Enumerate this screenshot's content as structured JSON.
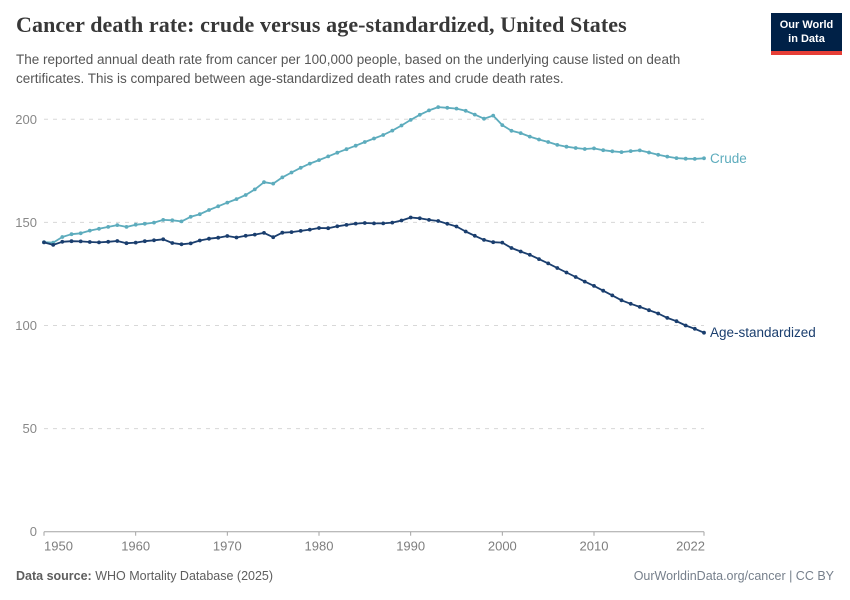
{
  "header": {
    "title": "Cancer death rate: crude versus age-standardized, United States",
    "subtitle": "The reported annual death rate from cancer per 100,000 people, based on the underlying cause listed on death certificates. This is compared between age-standardized death rates and crude death rates."
  },
  "logo": {
    "line1": "Our World",
    "line2": "in Data",
    "bg_color": "#002147",
    "accent_color": "#E63E36"
  },
  "chart_data": {
    "type": "line",
    "title": "Cancer death rate: crude versus age-standardized, United States",
    "xlabel": "",
    "ylabel": "",
    "xlim": [
      1950,
      2022
    ],
    "ylim": [
      0,
      210
    ],
    "x_ticks": [
      1950,
      1960,
      1970,
      1980,
      1990,
      2000,
      2010,
      2022
    ],
    "y_ticks": [
      0,
      50,
      100,
      150,
      200
    ],
    "grid": "horizontal-dashed",
    "legend_position": "end-of-line-labels",
    "marker": "dot",
    "x": [
      1950,
      1951,
      1952,
      1953,
      1954,
      1955,
      1956,
      1957,
      1958,
      1959,
      1960,
      1961,
      1962,
      1963,
      1964,
      1965,
      1966,
      1967,
      1968,
      1969,
      1970,
      1971,
      1972,
      1973,
      1974,
      1975,
      1976,
      1977,
      1978,
      1979,
      1980,
      1981,
      1982,
      1983,
      1984,
      1985,
      1986,
      1987,
      1988,
      1989,
      1990,
      1991,
      1992,
      1993,
      1994,
      1995,
      1996,
      1997,
      1998,
      1999,
      2000,
      2001,
      2002,
      2003,
      2004,
      2005,
      2006,
      2007,
      2008,
      2009,
      2010,
      2011,
      2012,
      2013,
      2014,
      2015,
      2016,
      2017,
      2018,
      2019,
      2020,
      2021,
      2022
    ],
    "series": [
      {
        "name": "Crude",
        "color": "#5DACBD",
        "values": [
          140.4,
          140.2,
          142.9,
          144.3,
          144.7,
          146.0,
          146.9,
          147.8,
          148.7,
          147.8,
          148.9,
          149.3,
          149.9,
          151.2,
          151.0,
          150.5,
          152.7,
          154.0,
          156.0,
          157.8,
          159.6,
          161.3,
          163.3,
          166.0,
          169.5,
          168.8,
          171.8,
          174.2,
          176.5,
          178.5,
          180.2,
          182.0,
          183.8,
          185.5,
          187.2,
          189.0,
          190.7,
          192.4,
          194.5,
          197.0,
          199.7,
          202.2,
          204.3,
          205.9,
          205.6,
          205.2,
          204.1,
          202.3,
          200.3,
          201.8,
          197.2,
          194.4,
          193.3,
          191.6,
          190.2,
          189.0,
          187.6,
          186.7,
          186.1,
          185.6,
          185.9,
          185.0,
          184.5,
          184.1,
          184.6,
          184.9,
          183.9,
          182.8,
          181.9,
          181.2,
          180.9,
          180.8,
          181.1
        ]
      },
      {
        "name": "Age-standardized",
        "color": "#1A3E6E",
        "values": [
          140.3,
          139.1,
          140.6,
          140.9,
          140.8,
          140.5,
          140.3,
          140.6,
          141.0,
          139.9,
          140.2,
          140.9,
          141.3,
          141.8,
          140.0,
          139.4,
          139.8,
          141.2,
          142.1,
          142.6,
          143.4,
          142.7,
          143.5,
          144.1,
          144.9,
          142.8,
          145.0,
          145.3,
          145.9,
          146.5,
          147.3,
          147.2,
          148.1,
          148.8,
          149.4,
          149.7,
          149.5,
          149.5,
          149.9,
          150.9,
          152.4,
          152.0,
          151.2,
          150.7,
          149.3,
          148.0,
          145.6,
          143.5,
          141.5,
          140.4,
          140.2,
          137.6,
          135.9,
          134.3,
          132.2,
          130.1,
          127.9,
          125.7,
          123.5,
          121.3,
          119.2,
          116.9,
          114.6,
          112.2,
          110.5,
          109.0,
          107.4,
          105.8,
          103.7,
          102.1,
          100.0,
          98.4,
          96.5
        ]
      }
    ]
  },
  "footer": {
    "source_label": "Data source:",
    "source_text": " WHO Mortality Database (2025)",
    "license_text": "OurWorldinData.org/cancer | CC BY"
  }
}
